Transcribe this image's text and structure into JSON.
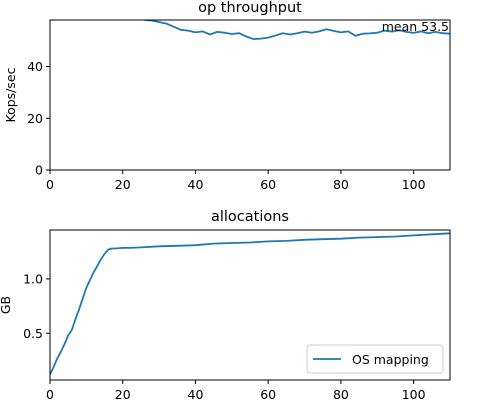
{
  "chart_data": [
    {
      "type": "line",
      "title": "op throughput",
      "xlabel": "",
      "ylabel": "Kops/sec",
      "xlim": [
        0,
        110
      ],
      "ylim": [
        0,
        58
      ],
      "xticks": [
        0,
        20,
        40,
        60,
        80,
        100
      ],
      "yticks": [
        0,
        20,
        40
      ],
      "annotation": "mean 53.5",
      "grid": false,
      "series": [
        {
          "color": "#1f77b4",
          "x": [
            26,
            28,
            30,
            32,
            34,
            36,
            38,
            40,
            42,
            44,
            46,
            48,
            50,
            52,
            54,
            56,
            58,
            60,
            62,
            64,
            66,
            68,
            70,
            72,
            74,
            76,
            78,
            80,
            82,
            84,
            86,
            88,
            90,
            92,
            94,
            96,
            98,
            100,
            102,
            104,
            106,
            108,
            110
          ],
          "y": [
            58,
            57.8,
            57.2,
            56.6,
            55.4,
            54.2,
            53.9,
            53.2,
            53.6,
            52.4,
            53.4,
            53.1,
            52.6,
            52.9,
            51.6,
            50.6,
            50.8,
            51.2,
            52.0,
            52.9,
            52.4,
            52.9,
            53.5,
            53.1,
            53.6,
            54.4,
            53.8,
            53.2,
            53.6,
            51.9,
            52.7,
            52.8,
            53.1,
            53.9,
            53.5,
            54.0,
            53.4,
            53.0,
            53.6,
            52.9,
            53.4,
            52.9,
            52.7
          ]
        }
      ]
    },
    {
      "type": "line",
      "title": "allocations",
      "xlabel": "",
      "ylabel": "GB",
      "xlim": [
        0,
        110
      ],
      "ylim": [
        0.07,
        1.45
      ],
      "xticks": [
        0,
        20,
        40,
        60,
        80,
        100
      ],
      "yticks": [
        0.5,
        1.0
      ],
      "ytick_labels": [
        "0.5",
        "1.0"
      ],
      "grid": false,
      "legend": {
        "position": "lower-right",
        "entries": [
          "OS mapping"
        ]
      },
      "series": [
        {
          "name": "OS mapping",
          "color": "#1f77b4",
          "x": [
            0,
            1,
            2,
            3,
            4,
            5,
            6,
            7,
            8,
            9,
            10,
            11,
            12,
            13,
            14,
            15,
            16,
            17,
            18,
            20,
            22,
            25,
            30,
            35,
            40,
            45,
            50,
            55,
            60,
            65,
            70,
            75,
            80,
            85,
            90,
            95,
            100,
            105,
            110
          ],
          "y": [
            0.12,
            0.19,
            0.27,
            0.33,
            0.4,
            0.48,
            0.53,
            0.63,
            0.72,
            0.82,
            0.92,
            0.99,
            1.06,
            1.12,
            1.18,
            1.23,
            1.27,
            1.28,
            1.28,
            1.285,
            1.285,
            1.29,
            1.3,
            1.305,
            1.31,
            1.325,
            1.33,
            1.335,
            1.345,
            1.35,
            1.36,
            1.365,
            1.37,
            1.38,
            1.385,
            1.39,
            1.4,
            1.41,
            1.42
          ]
        }
      ]
    }
  ]
}
